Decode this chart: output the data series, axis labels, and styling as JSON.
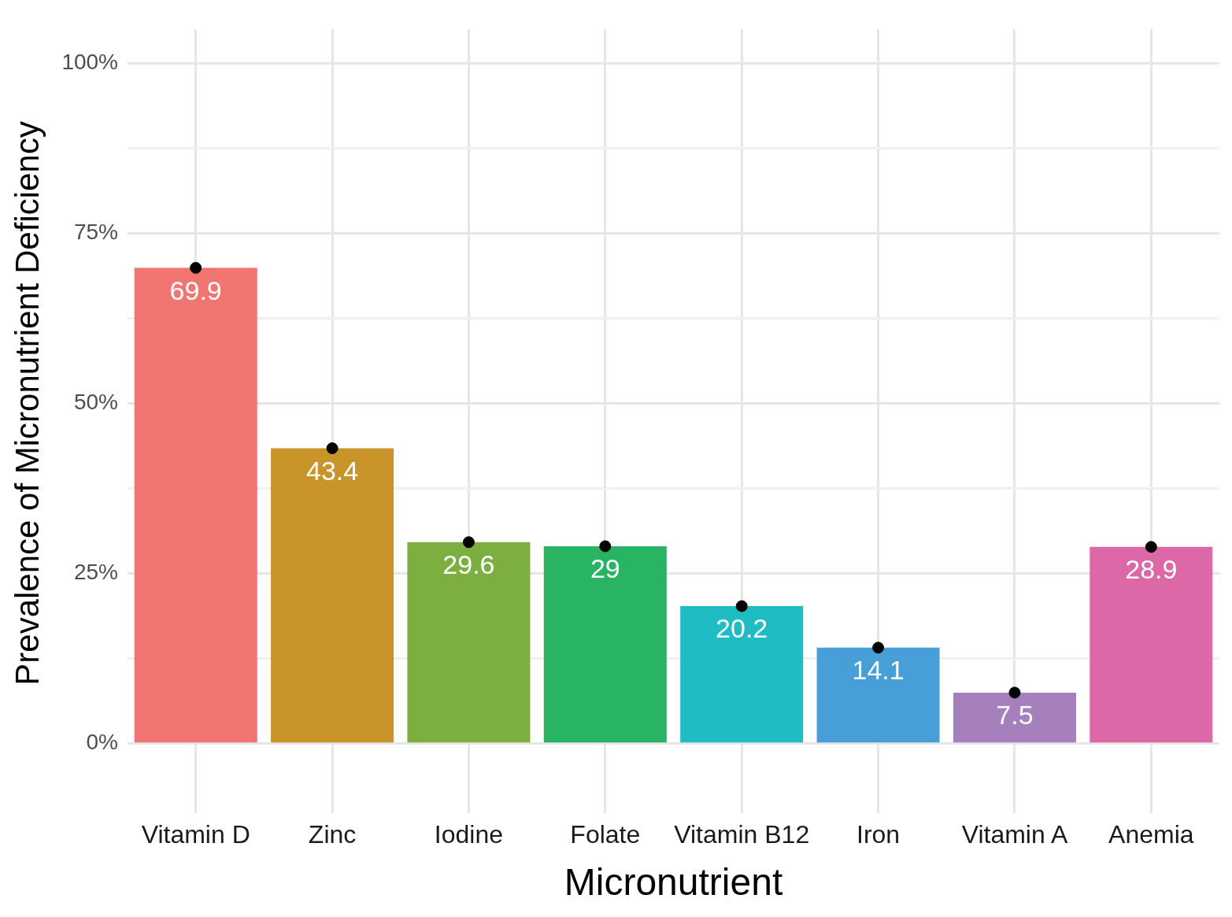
{
  "chart_data": {
    "type": "bar",
    "xlabel": "Micronutrient",
    "ylabel": "Prevalence of Micronutrient Deficiency",
    "categories": [
      "Vitamin D",
      "Zinc",
      "Iodine",
      "Folate",
      "Vitamin B12",
      "Iron",
      "Vitamin A",
      "Anemia"
    ],
    "series": [
      {
        "colors": [
          "#f17570",
          "#c9952b",
          "#7cae40",
          "#29b463",
          "#1fbcc4",
          "#489fd8",
          "#a680bc",
          "#dd68a7"
        ],
        "values": [
          69.9,
          43.4,
          29.6,
          29,
          20.2,
          14.1,
          7.5,
          28.9
        ],
        "value_labels": [
          "69.9",
          "43.4",
          "29.6",
          "29",
          "20.2",
          "14.1",
          "7.5",
          "28.9"
        ]
      },
      {
        "type": "scatter",
        "color": "#000000",
        "x": [
          "Vitamin D",
          "Zinc",
          "Iodine",
          "Folate",
          "Vitamin B12",
          "Iron",
          "Vitamin A",
          "Anemia"
        ],
        "values": [
          69.9,
          43.4,
          29.6,
          29,
          20.2,
          14.1,
          7.5,
          28.9
        ]
      }
    ],
    "marker": "circle",
    "grid": true,
    "legend": false,
    "ylim": [
      -5,
      105
    ],
    "yticks": [
      {
        "value": 0,
        "label": "0%"
      },
      {
        "value": 12.5,
        "label": null
      },
      {
        "value": 25,
        "label": "25%"
      },
      {
        "value": 37.5,
        "label": null
      },
      {
        "value": 50,
        "label": "50%"
      },
      {
        "value": 62.5,
        "label": null
      },
      {
        "value": 75,
        "label": "75%"
      },
      {
        "value": 87.5,
        "label": null
      },
      {
        "value": 100,
        "label": "100%"
      }
    ]
  }
}
